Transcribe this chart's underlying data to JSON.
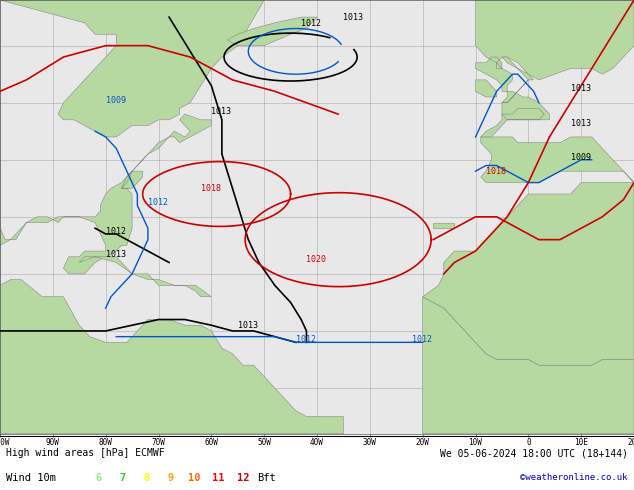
{
  "title_left": "High wind areas [hPa] ECMWF",
  "title_right": "We 05-06-2024 18:00 UTC (18+144)",
  "subtitle_label": "Wind 10m",
  "bft_colors": [
    "#90EE90",
    "#32CD32",
    "#FFFF00",
    "#FFA500",
    "#FF6600",
    "#FF0000",
    "#CC0000"
  ],
  "bft_nums": [
    "6",
    "7",
    "8",
    "9",
    "10",
    "11",
    "12"
  ],
  "copyright": "©weatheronline.co.uk",
  "land_color": "#b5d9a0",
  "sea_color": "#e8e8e8",
  "grid_color": "#aaaaaa",
  "black_color": "#000000",
  "red_color": "#cc0000",
  "blue_color": "#0055cc",
  "lon_min": -100,
  "lon_max": 20,
  "lat_min": -8,
  "lat_max": 68,
  "figsize": [
    6.34,
    4.9
  ],
  "dpi": 100
}
